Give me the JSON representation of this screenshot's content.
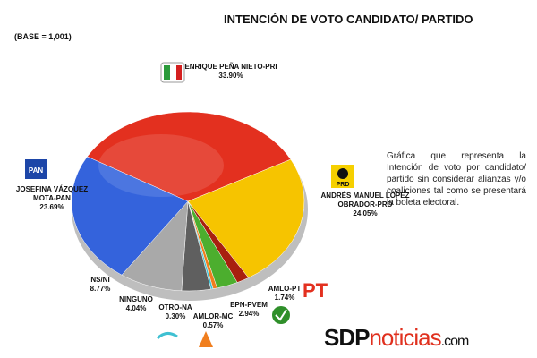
{
  "chart_data": {
    "type": "pie",
    "title": "INTENCIÓN DE VOTO CANDIDATO/ PARTIDO",
    "subtitle": "(BASE = 1,001)",
    "description": "Gráfica que representa la Intención de voto por candidato/ partido sin considerar alianzas y/o coaliciones tal como se presentará la boleta electoral.",
    "categories": [
      "ENRIQUE PEÑA NIETO-PRI",
      "ANDRÉS MANUEL LÓPEZ OBRADOR-PRD",
      "AMLO-PT",
      "EPN-PVEM",
      "AMLOR-MC",
      "OTRO-NA",
      "NINGUNO",
      "NS/NI",
      "JOSEFINA VÁZQUEZ MOTA-PAN"
    ],
    "values": [
      33.9,
      24.05,
      1.74,
      2.94,
      0.57,
      0.3,
      4.04,
      8.77,
      23.69
    ],
    "value_labels": [
      "33.90%",
      "24.05%",
      "1.74%",
      "2.94%",
      "0.57%",
      "0.30%",
      "4.04%",
      "8.77%",
      "23.69%"
    ],
    "colors": [
      "#e3301f",
      "#f6c400",
      "#a8200f",
      "#4cae2e",
      "#f07e1e",
      "#3fc0d2",
      "#5f5f5f",
      "#a9a9a9",
      "#3463dc"
    ],
    "logos": [
      "PAN",
      "PRD",
      "PT"
    ],
    "brand": [
      "SDP",
      "noticias",
      ".com"
    ]
  }
}
